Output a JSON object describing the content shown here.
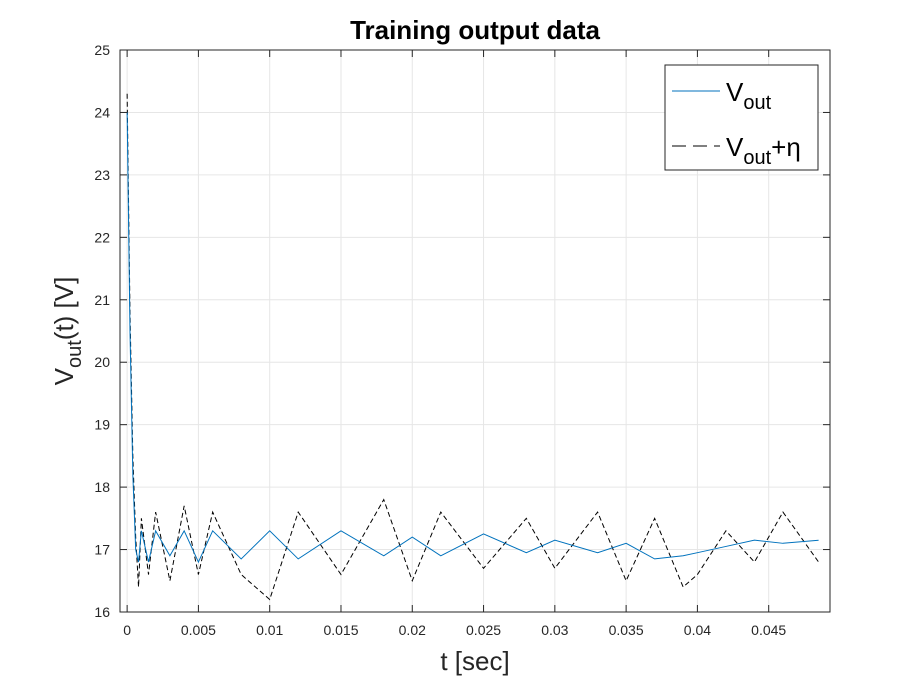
{
  "chart_data": {
    "type": "line",
    "title": "Training output data",
    "xlabel": "t [sec]",
    "ylabel": {
      "base": "V",
      "sub": "out",
      "rest": "(t) [V]"
    },
    "xlim": [
      -0.0005,
      0.0493
    ],
    "ylim": [
      16,
      25
    ],
    "xticks": [
      0,
      0.005,
      0.01,
      0.015,
      0.02,
      0.025,
      0.03,
      0.035,
      0.04,
      0.045
    ],
    "xtick_labels": [
      "0",
      "0.005",
      "0.01",
      "0.015",
      "0.02",
      "0.025",
      "0.03",
      "0.035",
      "0.04",
      "0.045"
    ],
    "yticks": [
      16,
      17,
      18,
      19,
      20,
      21,
      22,
      23,
      24,
      25
    ],
    "ytick_labels": [
      "16",
      "17",
      "18",
      "19",
      "20",
      "21",
      "22",
      "23",
      "24",
      "25"
    ],
    "grid": true,
    "legend_position": "top-right",
    "series": [
      {
        "name": {
          "base": "V",
          "sub": "out",
          "rest": ""
        },
        "color": "#0072BD",
        "style": "solid",
        "points": [
          [
            0,
            24.0
          ],
          [
            0.0002,
            20.5
          ],
          [
            0.0004,
            18.2
          ],
          [
            0.0006,
            17.0
          ],
          [
            0.0008,
            16.8
          ],
          [
            0.001,
            17.3
          ],
          [
            0.0015,
            16.8
          ],
          [
            0.002,
            17.3
          ],
          [
            0.003,
            16.9
          ],
          [
            0.004,
            17.3
          ],
          [
            0.005,
            16.8
          ],
          [
            0.006,
            17.3
          ],
          [
            0.008,
            16.85
          ],
          [
            0.01,
            17.3
          ],
          [
            0.012,
            16.85
          ],
          [
            0.015,
            17.3
          ],
          [
            0.018,
            16.9
          ],
          [
            0.02,
            17.2
          ],
          [
            0.022,
            16.9
          ],
          [
            0.025,
            17.25
          ],
          [
            0.028,
            16.95
          ],
          [
            0.03,
            17.15
          ],
          [
            0.033,
            16.95
          ],
          [
            0.035,
            17.1
          ],
          [
            0.037,
            16.85
          ],
          [
            0.039,
            16.9
          ],
          [
            0.04,
            16.95
          ],
          [
            0.042,
            17.05
          ],
          [
            0.044,
            17.15
          ],
          [
            0.046,
            17.1
          ],
          [
            0.0485,
            17.15
          ]
        ]
      },
      {
        "name": {
          "base": "V",
          "sub": "out",
          "rest": "+η"
        },
        "color": "#000000",
        "style": "dashed",
        "points": [
          [
            0,
            24.3
          ],
          [
            0.0002,
            20.8
          ],
          [
            0.0004,
            18.5
          ],
          [
            0.0006,
            17.2
          ],
          [
            0.0008,
            16.4
          ],
          [
            0.001,
            17.5
          ],
          [
            0.0015,
            16.6
          ],
          [
            0.002,
            17.6
          ],
          [
            0.003,
            16.5
          ],
          [
            0.004,
            17.7
          ],
          [
            0.005,
            16.6
          ],
          [
            0.006,
            17.6
          ],
          [
            0.008,
            16.6
          ],
          [
            0.01,
            16.2
          ],
          [
            0.012,
            17.6
          ],
          [
            0.015,
            16.6
          ],
          [
            0.018,
            17.8
          ],
          [
            0.02,
            16.5
          ],
          [
            0.022,
            17.6
          ],
          [
            0.025,
            16.7
          ],
          [
            0.028,
            17.5
          ],
          [
            0.03,
            16.7
          ],
          [
            0.033,
            17.6
          ],
          [
            0.035,
            16.5
          ],
          [
            0.037,
            17.5
          ],
          [
            0.039,
            16.4
          ],
          [
            0.04,
            16.6
          ],
          [
            0.042,
            17.3
          ],
          [
            0.044,
            16.8
          ],
          [
            0.046,
            17.6
          ],
          [
            0.0485,
            16.8
          ]
        ]
      }
    ]
  }
}
